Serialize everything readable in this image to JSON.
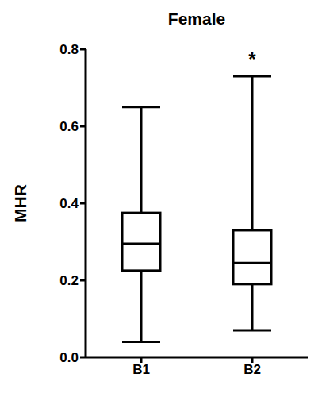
{
  "chart_data": {
    "type": "box",
    "title": "Female",
    "y_label": "MHR",
    "categories": [
      "B1",
      "B2"
    ],
    "min": [
      0.04,
      0.07
    ],
    "q1": [
      0.225,
      0.19
    ],
    "median": [
      0.295,
      0.245
    ],
    "q3": [
      0.375,
      0.33
    ],
    "max": [
      0.65,
      0.73
    ],
    "color": "#000000",
    "ylim": [
      0,
      0.8
    ],
    "yticks": [
      {
        "value": 0,
        "label": "0.0"
      },
      0.2,
      0.4,
      0.6,
      0.8
    ],
    "annotations": [
      {
        "text": "*",
        "x": "B2",
        "y": 0.775
      }
    ]
  }
}
